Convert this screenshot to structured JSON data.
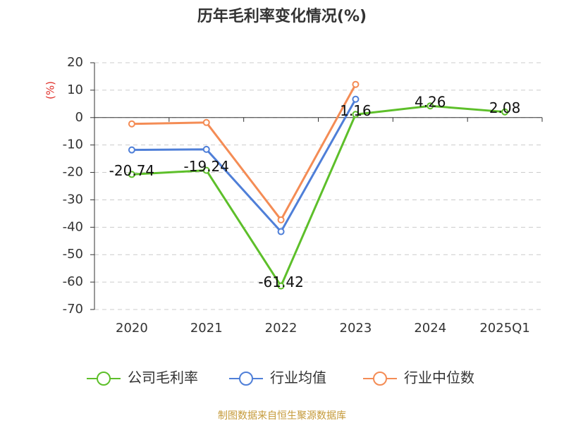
{
  "chart_data": {
    "type": "line",
    "title": "历年毛利率变化情况(%)",
    "y_label": "(%)",
    "categories": [
      "2020",
      "2021",
      "2022",
      "2023",
      "2024",
      "2025Q1"
    ],
    "series": [
      {
        "name": "公司毛利率",
        "color": "#5dbf2a",
        "values": [
          -20.74,
          -19.24,
          -61.42,
          1.16,
          4.26,
          2.08
        ],
        "show_labels": true
      },
      {
        "name": "行业均值",
        "color": "#4f7fd8",
        "values": [
          -11.8,
          -11.6,
          -41.6,
          6.7,
          null,
          null
        ]
      },
      {
        "name": "行业中位数",
        "color": "#f48c55",
        "values": [
          -2.3,
          -1.8,
          -37.3,
          12.1,
          null,
          null
        ]
      }
    ],
    "ylim": [
      -70,
      20
    ],
    "yticks": [
      20,
      10,
      0,
      -10,
      -20,
      -30,
      -40,
      -50,
      -60,
      -70
    ],
    "grid": true,
    "source": "制图数据来自恒生聚源数据库"
  }
}
